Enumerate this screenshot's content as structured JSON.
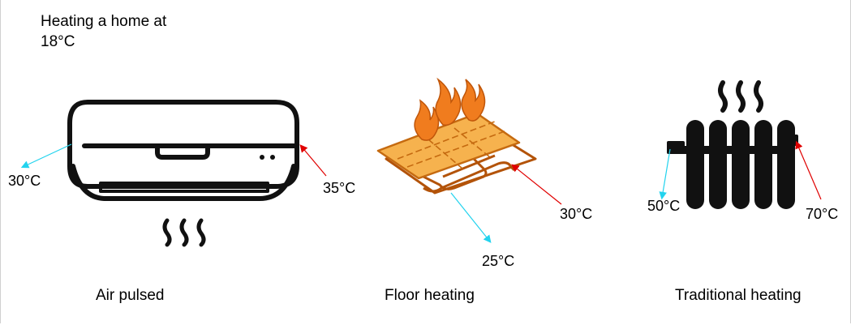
{
  "title": "Heating a home at 18°C",
  "systems": [
    {
      "label": "Air pulsed",
      "out_temp": "30°C",
      "in_temp": "35°C"
    },
    {
      "label": "Floor heating",
      "out_temp": "25°C",
      "in_temp": "30°C"
    },
    {
      "label": "Traditional heating",
      "out_temp": "50°C",
      "in_temp": "70°C"
    }
  ],
  "colors": {
    "outflow_arrow": "#22d3ee",
    "inflow_arrow": "#e00000",
    "floor_heating_pipe": "#b35309",
    "floor_heating_panel": "#f6b24e",
    "flame": "#f07c1e"
  }
}
